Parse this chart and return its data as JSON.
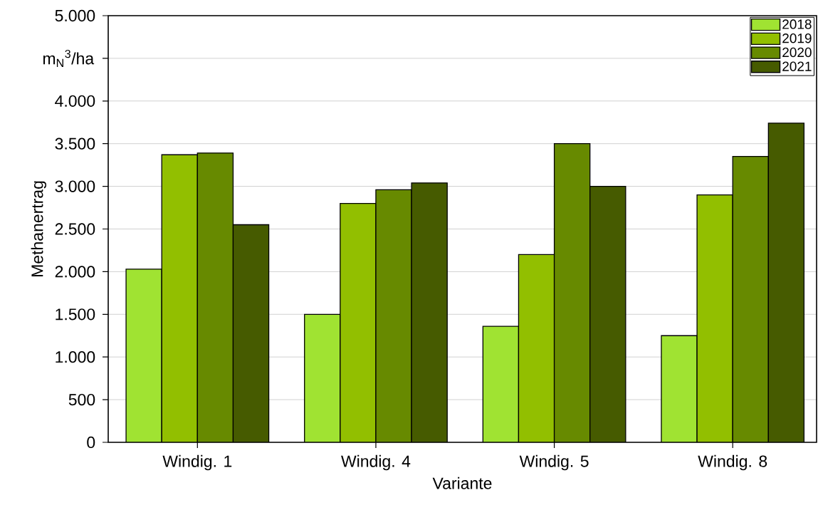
{
  "chart_data": {
    "type": "bar",
    "xlabel": "Variante",
    "ylabel": "Methanertrag",
    "categories": [
      "Windig. 1",
      "Windig. 4",
      "Windig. 5",
      "Windig. 8"
    ],
    "series": [
      {
        "name": "2018",
        "color": "#a0e332",
        "values": [
          2030,
          1500,
          1360,
          1250
        ]
      },
      {
        "name": "2019",
        "color": "#92bf00",
        "values": [
          3370,
          2800,
          2200,
          2900
        ]
      },
      {
        "name": "2020",
        "color": "#678a00",
        "values": [
          3390,
          2960,
          3500,
          3350
        ]
      },
      {
        "name": "2021",
        "color": "#465b00",
        "values": [
          2550,
          3040,
          3000,
          3740
        ]
      }
    ],
    "ylim": [
      0,
      5000
    ],
    "yticks": [
      0,
      500,
      {
        "value": 1000,
        "label": "1.000"
      },
      {
        "value": 1500,
        "label": "1.500"
      },
      {
        "value": 2000,
        "label": "2.000"
      },
      {
        "value": 2500,
        "label": "2.500"
      },
      {
        "value": 3000,
        "label": "3.000"
      },
      {
        "value": 3500,
        "label": "3.500"
      },
      {
        "value": 4000,
        "label": "4.000"
      },
      {
        "value": 4500,
        "label": null
      },
      {
        "value": 5000,
        "label": "5.000"
      }
    ],
    "annotations": [
      "m$_{N}$$^{3}$/ha"
    ],
    "grid": "y",
    "legend": "top right"
  }
}
